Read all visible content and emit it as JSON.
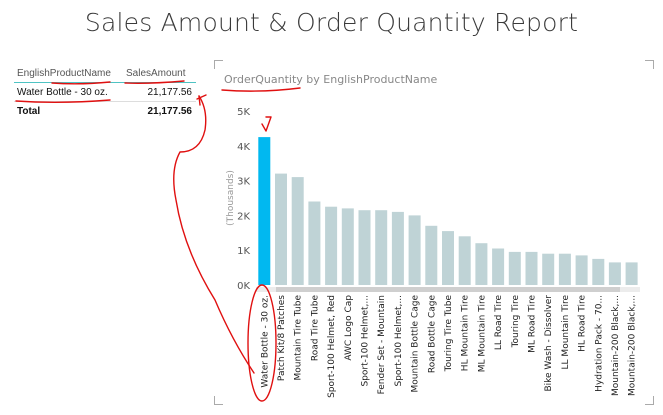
{
  "report": {
    "title": "Sales Amount & Order Quantity Report"
  },
  "table": {
    "headers": [
      "EnglishProductName",
      "SalesAmount"
    ],
    "rows": [
      {
        "name": "Water Bottle - 30 oz.",
        "amount": "21,177.56"
      }
    ],
    "total": {
      "label": "Total",
      "amount": "21,177.56"
    }
  },
  "chart_data": {
    "type": "bar",
    "title": "OrderQuantity by EnglishProductName",
    "title_measure": "OrderQuantity",
    "title_rest": " by EnglishProductName",
    "ylabel": "(Thousands)",
    "ylim": [
      0,
      5000
    ],
    "yticks": [
      "0K",
      "1K",
      "2K",
      "3K",
      "4K",
      "5K"
    ],
    "categories": [
      "Water Bottle - 30 oz.",
      "Patch Kit/8 Patches",
      "Mountain Tire Tube",
      "Road Tire Tube",
      "Sport-100 Helmet, Red",
      "AWC Logo Cap",
      "Sport-100 Helmet,...",
      "Fender Set - Mountain",
      "Sport-100 Helmet,...",
      "Mountain Bottle Cage",
      "Road Bottle Cage",
      "Touring Tire Tube",
      "HL Mountain Tire",
      "ML Mountain Tire",
      "LL Road Tire",
      "Touring Tire",
      "ML Road Tire",
      "Bike Wash - Dissolver",
      "LL Mountain Tire",
      "HL Road Tire",
      "Hydration Pack - 70...",
      "Mountain-200 Black,...",
      "Mountain-200 Black,..."
    ],
    "values": [
      4250,
      3200,
      3100,
      2400,
      2250,
      2200,
      2150,
      2150,
      2100,
      2000,
      1700,
      1550,
      1400,
      1200,
      1050,
      950,
      950,
      900,
      900,
      850,
      750,
      650,
      650
    ],
    "highlight_index": 0,
    "colors": {
      "highlight": "#01b8f0",
      "bar": "#bfd3d6",
      "axis_text": "#555555"
    },
    "grid": false,
    "legend": "none"
  }
}
